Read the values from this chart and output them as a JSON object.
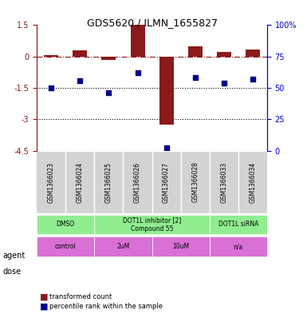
{
  "title": "GDS5620 / ILMN_1655827",
  "samples": [
    "GSM1366023",
    "GSM1366024",
    "GSM1366025",
    "GSM1366026",
    "GSM1366027",
    "GSM1366028",
    "GSM1366033",
    "GSM1366034"
  ],
  "red_values": [
    0.05,
    0.28,
    -0.18,
    1.5,
    -3.25,
    0.5,
    0.22,
    0.35
  ],
  "blue_values": [
    50,
    56,
    46,
    62,
    2,
    58,
    54,
    57
  ],
  "ylim_left": [
    -4.5,
    1.5
  ],
  "ylim_right": [
    0,
    100
  ],
  "yticks_left": [
    1.5,
    0,
    -1.5,
    -3,
    -4.5
  ],
  "yticks_right": [
    100,
    75,
    50,
    25,
    0
  ],
  "hlines_dotted": [
    -1.5,
    -3.0
  ],
  "hline_dashdot": 0.0,
  "bar_color": "#8B1A1A",
  "dot_color": "#00008B",
  "agent_groups": [
    {
      "label": "DMSO",
      "start": 0,
      "end": 2,
      "color": "#90EE90"
    },
    {
      "label": "DOT1L inhibitor [2]\nCompound 55",
      "start": 2,
      "end": 6,
      "color": "#90EE90"
    },
    {
      "label": "DOT1L siRNA",
      "start": 6,
      "end": 8,
      "color": "#90EE90"
    }
  ],
  "dose_groups": [
    {
      "label": "control",
      "start": 0,
      "end": 2,
      "color": "#DA70D6"
    },
    {
      "label": "2uM",
      "start": 2,
      "end": 4,
      "color": "#DA70D6"
    },
    {
      "label": "10uM",
      "start": 4,
      "end": 6,
      "color": "#DA70D6"
    },
    {
      "label": "n/a",
      "start": 6,
      "end": 8,
      "color": "#DA70D6"
    }
  ],
  "legend_items": [
    {
      "label": "transformed count",
      "color": "#8B1A1A"
    },
    {
      "label": "percentile rank within the sample",
      "color": "#00008B"
    }
  ],
  "ylabel_left_color": "#8B1A1A",
  "ylabel_right_color": "#0000CD",
  "background_color": "#ffffff",
  "agent_label_colors": [
    "#006400",
    "#006400",
    "#006400"
  ],
  "dose_label_colors": [
    "#800080",
    "#800080",
    "#800080",
    "#800080"
  ]
}
